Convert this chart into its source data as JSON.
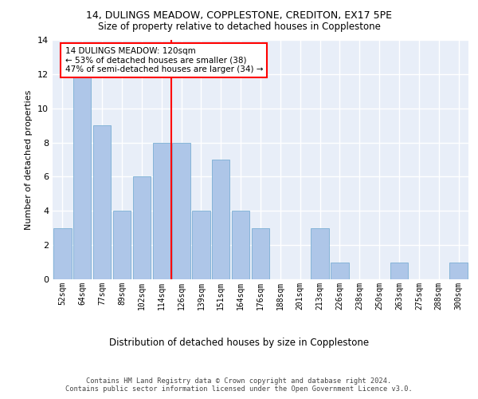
{
  "title1": "14, DULINGS MEADOW, COPPLESTONE, CREDITON, EX17 5PE",
  "title2": "Size of property relative to detached houses in Copplestone",
  "xlabel": "Distribution of detached houses by size in Copplestone",
  "ylabel": "Number of detached properties",
  "bin_labels": [
    "52sqm",
    "64sqm",
    "77sqm",
    "89sqm",
    "102sqm",
    "114sqm",
    "126sqm",
    "139sqm",
    "151sqm",
    "164sqm",
    "176sqm",
    "188sqm",
    "201sqm",
    "213sqm",
    "226sqm",
    "238sqm",
    "250sqm",
    "263sqm",
    "275sqm",
    "288sqm",
    "300sqm"
  ],
  "bar_heights": [
    3,
    12,
    9,
    4,
    6,
    8,
    8,
    4,
    7,
    4,
    3,
    0,
    0,
    3,
    1,
    0,
    0,
    1,
    0,
    0,
    1
  ],
  "bar_color": "#aec6e8",
  "bar_edgecolor": "#7bafd4",
  "property_line_bin_index": 5.5,
  "annotation_text": "14 DULINGS MEADOW: 120sqm\n← 53% of detached houses are smaller (38)\n47% of semi-detached houses are larger (34) →",
  "annotation_box_color": "white",
  "annotation_box_edgecolor": "red",
  "vline_color": "red",
  "ylim": [
    0,
    14
  ],
  "yticks": [
    0,
    2,
    4,
    6,
    8,
    10,
    12,
    14
  ],
  "footer_text": "Contains HM Land Registry data © Crown copyright and database right 2024.\nContains public sector information licensed under the Open Government Licence v3.0.",
  "background_color": "#e8eef8",
  "grid_color": "white"
}
